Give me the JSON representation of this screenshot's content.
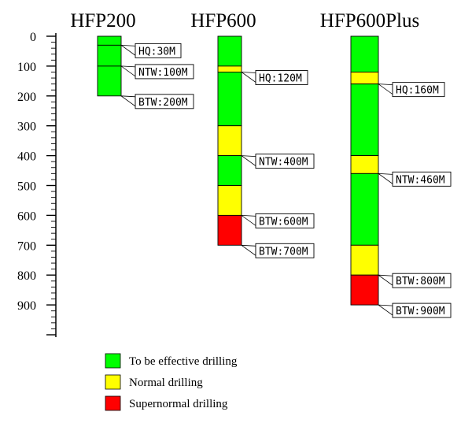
{
  "columns": [
    {
      "title": "HFP200",
      "segments": [
        {
          "from": 0,
          "to": 30,
          "color": "#00ff00"
        },
        {
          "from": 30,
          "to": 100,
          "color": "#00ff00"
        },
        {
          "from": 100,
          "to": 200,
          "color": "#00ff00"
        }
      ],
      "callouts": [
        {
          "depth": 30,
          "text": "HQ:30M"
        },
        {
          "depth": 100,
          "text": "NTW:100M"
        },
        {
          "depth": 200,
          "text": "BTW:200M"
        }
      ]
    },
    {
      "title": "HFP600",
      "segments": [
        {
          "from": 0,
          "to": 100,
          "color": "#00ff00"
        },
        {
          "from": 100,
          "to": 120,
          "color": "#ffff00"
        },
        {
          "from": 120,
          "to": 300,
          "color": "#00ff00"
        },
        {
          "from": 300,
          "to": 400,
          "color": "#ffff00"
        },
        {
          "from": 400,
          "to": 500,
          "color": "#00ff00"
        },
        {
          "from": 500,
          "to": 600,
          "color": "#ffff00"
        },
        {
          "from": 600,
          "to": 700,
          "color": "#ff0000"
        }
      ],
      "callouts": [
        {
          "depth": 120,
          "text": "HQ:120M"
        },
        {
          "depth": 400,
          "text": "NTW:400M"
        },
        {
          "depth": 600,
          "text": "BTW:600M"
        },
        {
          "depth": 700,
          "text": "BTW:700M"
        }
      ]
    },
    {
      "title": "HFP600Plus",
      "segments": [
        {
          "from": 0,
          "to": 120,
          "color": "#00ff00"
        },
        {
          "from": 120,
          "to": 160,
          "color": "#ffff00"
        },
        {
          "from": 160,
          "to": 400,
          "color": "#00ff00"
        },
        {
          "from": 400,
          "to": 460,
          "color": "#ffff00"
        },
        {
          "from": 460,
          "to": 700,
          "color": "#00ff00"
        },
        {
          "from": 700,
          "to": 800,
          "color": "#ffff00"
        },
        {
          "from": 800,
          "to": 900,
          "color": "#ff0000"
        }
      ],
      "callouts": [
        {
          "depth": 160,
          "text": "HQ:160M"
        },
        {
          "depth": 460,
          "text": "NTW:460M"
        },
        {
          "depth": 800,
          "text": "BTW:800M"
        },
        {
          "depth": 900,
          "text": "BTW:900M"
        }
      ]
    }
  ],
  "axis": {
    "ticks": [
      "0",
      "100",
      "200",
      "300",
      "400",
      "500",
      "600",
      "700",
      "800",
      "900"
    ],
    "range": [
      0,
      1000
    ]
  },
  "legend": [
    {
      "label": "To be effective drilling",
      "color": "#00ff00"
    },
    {
      "label": "Normal drilling",
      "color": "#ffff00"
    },
    {
      "label": "Supernormal drilling",
      "color": "#ff0000"
    }
  ]
}
